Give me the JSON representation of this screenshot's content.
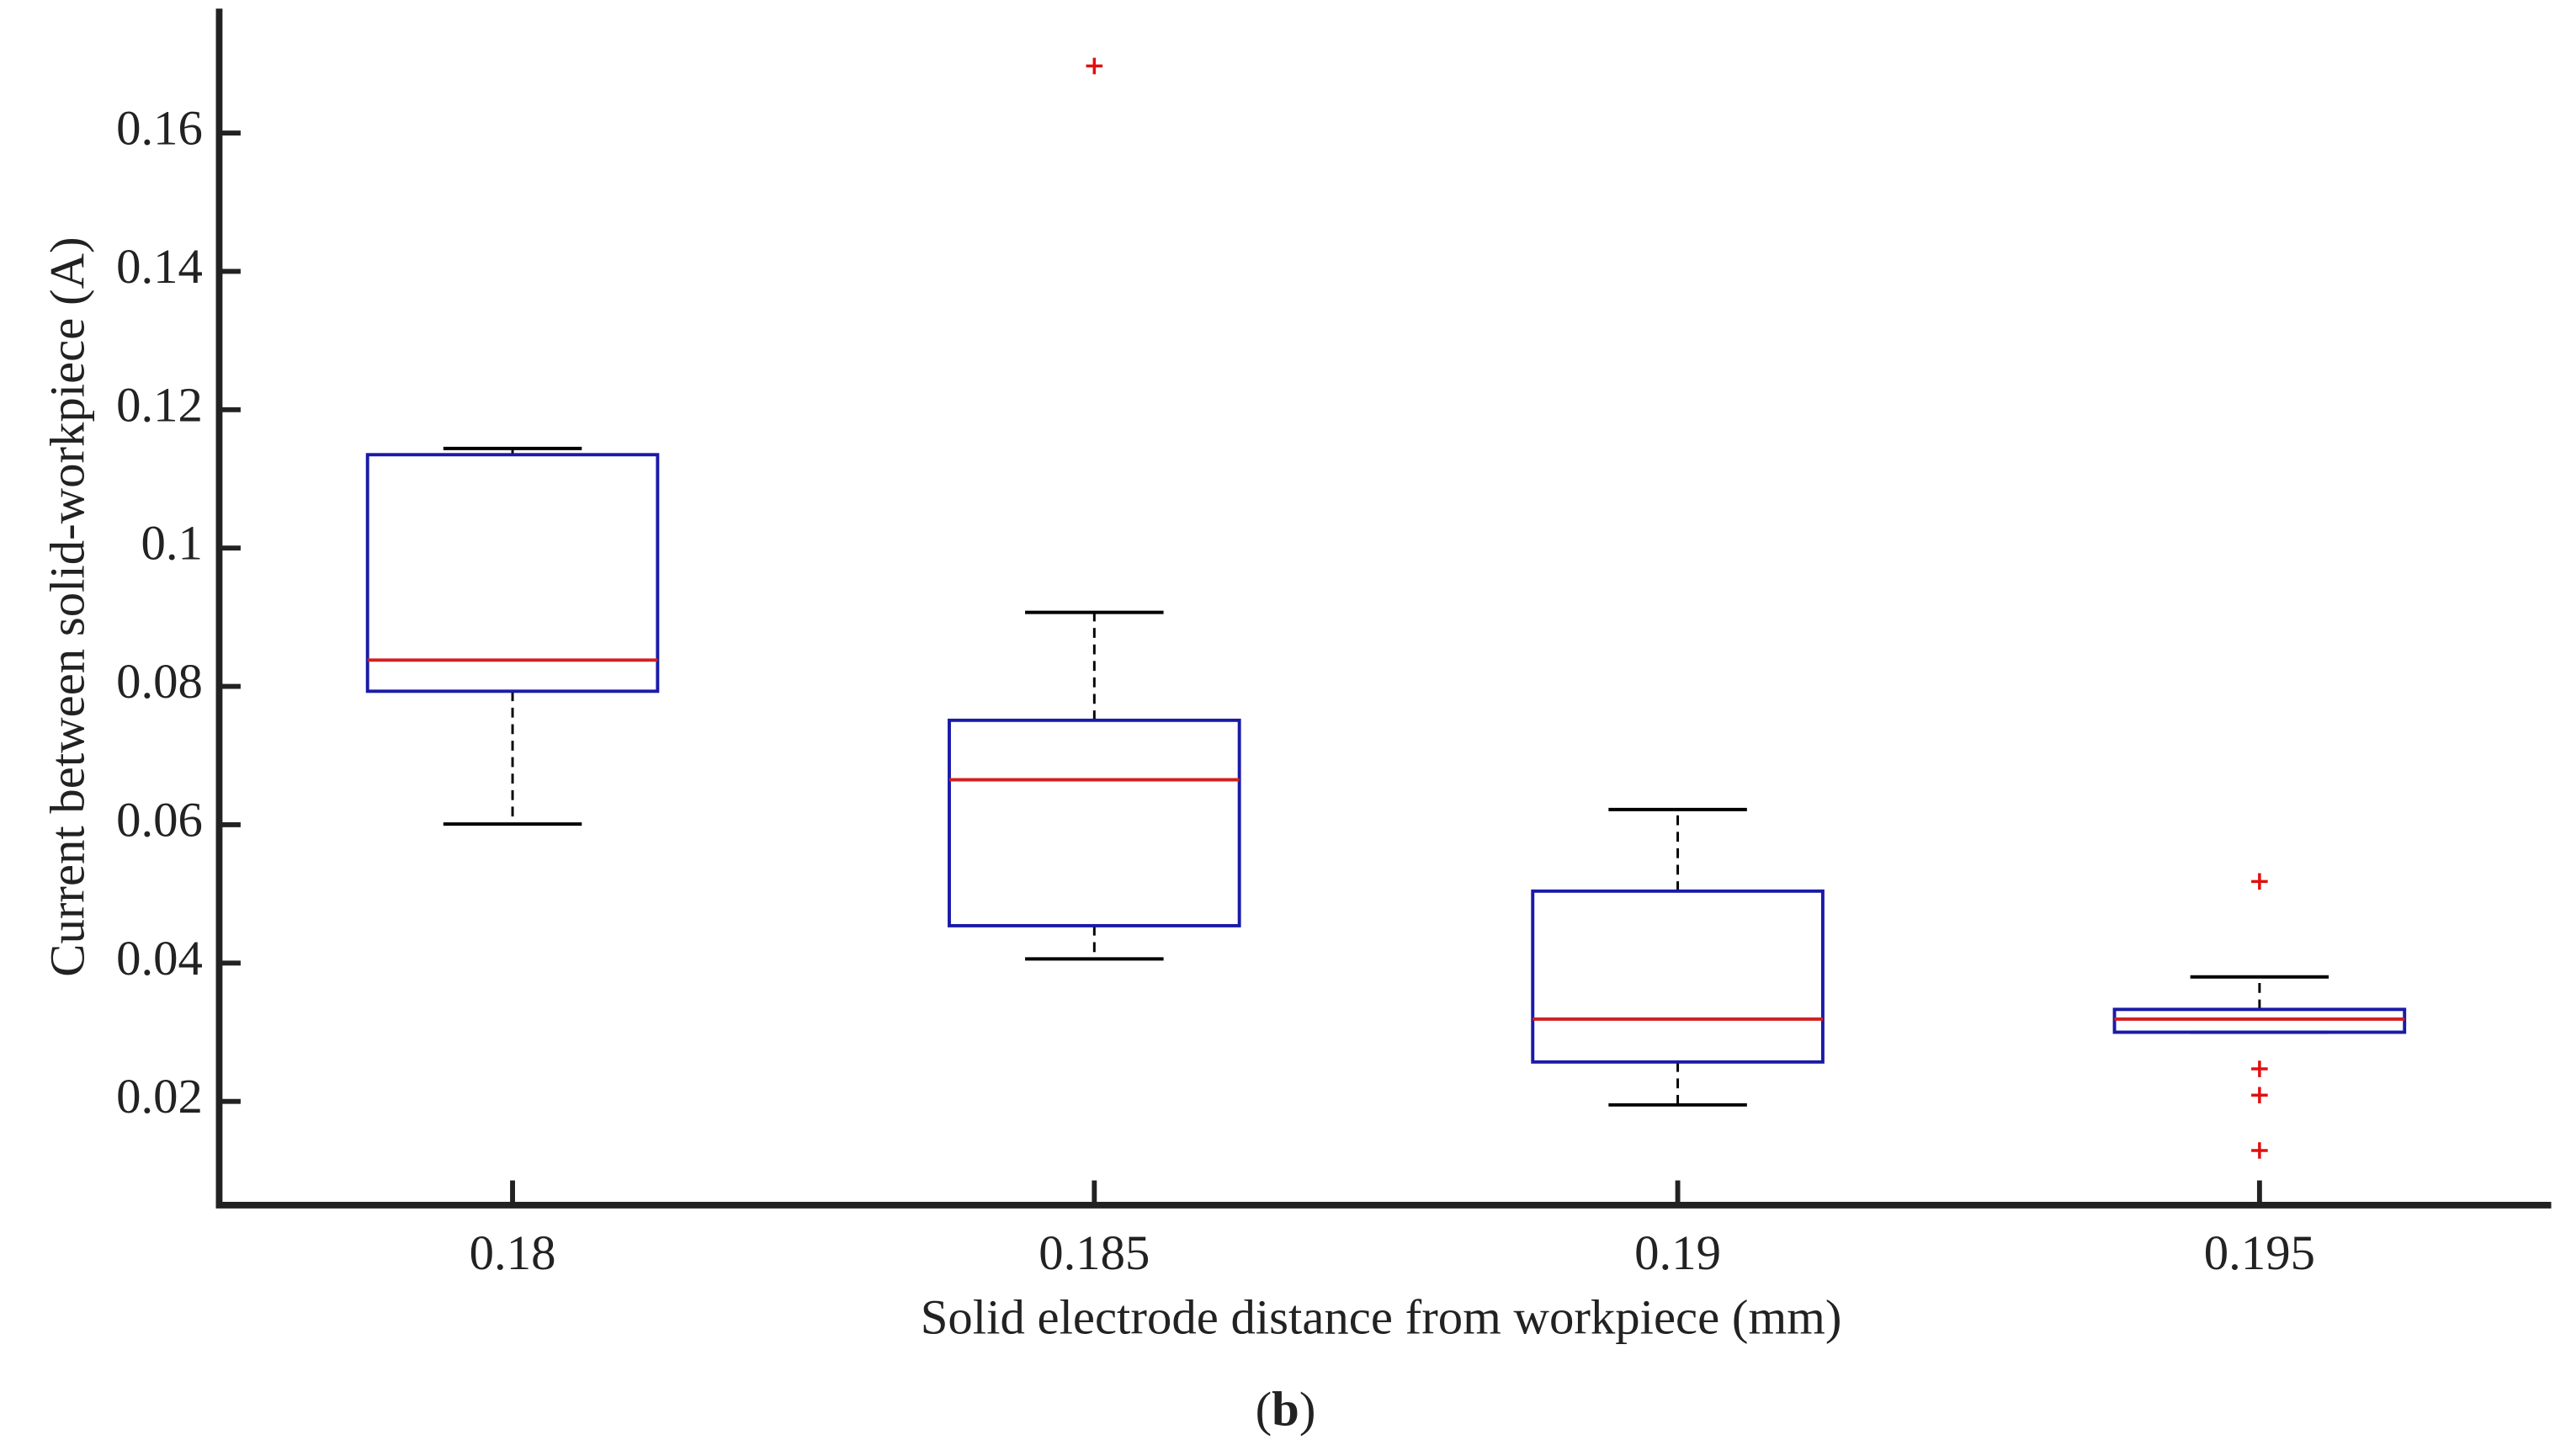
{
  "chart_data": {
    "type": "box",
    "xlabel": "Solid electrode distance from workpiece (mm)",
    "ylabel": "Current between solid-workpiece (A)",
    "caption": "b",
    "categories": [
      "0.18",
      "0.185",
      "0.19",
      "0.195"
    ],
    "boxes": [
      {
        "whislo": 0.0601,
        "q1": 0.0793,
        "med": 0.0838,
        "q3": 0.1135,
        "whishi": 0.1144,
        "fliers": []
      },
      {
        "whislo": 0.0406,
        "q1": 0.0454,
        "med": 0.0665,
        "q3": 0.0751,
        "whishi": 0.0907,
        "fliers": [
          0.1697
        ]
      },
      {
        "whislo": 0.0195,
        "q1": 0.0257,
        "med": 0.0319,
        "q3": 0.0504,
        "whishi": 0.0622,
        "fliers": []
      },
      {
        "whislo": 0.03,
        "q1": 0.03,
        "med": 0.0319,
        "q3": 0.0333,
        "whishi": 0.038,
        "fliers": [
          0.0518,
          0.0247,
          0.0209,
          0.0129
        ]
      }
    ],
    "box_color": "#1a1aa8",
    "median_color": "#d02020",
    "flier_color": "#e01010",
    "whisker_color": "#000000",
    "ylim": [
      0.005,
      0.178
    ],
    "yticks": [
      0.02,
      0.04,
      0.06,
      0.08,
      0.1,
      0.12,
      0.14,
      0.16
    ]
  }
}
